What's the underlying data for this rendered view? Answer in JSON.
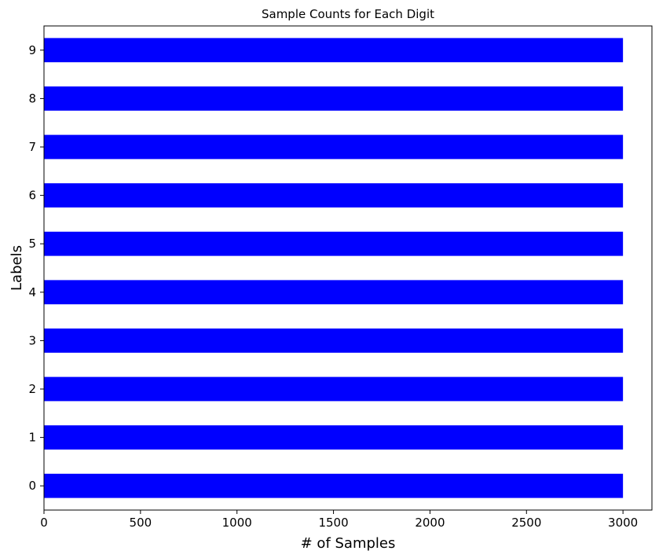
{
  "chart_data": {
    "type": "bar",
    "orientation": "horizontal",
    "title": "Sample Counts for Each Digit",
    "xlabel": "# of Samples",
    "ylabel": "Labels",
    "categories": [
      "0",
      "1",
      "2",
      "3",
      "4",
      "5",
      "6",
      "7",
      "8",
      "9"
    ],
    "series": [
      {
        "values": [
          3000,
          3000,
          3000,
          3000,
          3000,
          3000,
          3000,
          3000,
          3000,
          3000
        ],
        "color": "#0000ff"
      }
    ],
    "xlim": [
      0,
      3150
    ],
    "x_ticks": [
      0,
      500,
      1000,
      1500,
      2000,
      2500,
      3000
    ],
    "x_tick_labels": [
      "0",
      "500",
      "1000",
      "1500",
      "2000",
      "2500",
      "3000"
    ],
    "grid": false,
    "legend": "none"
  }
}
